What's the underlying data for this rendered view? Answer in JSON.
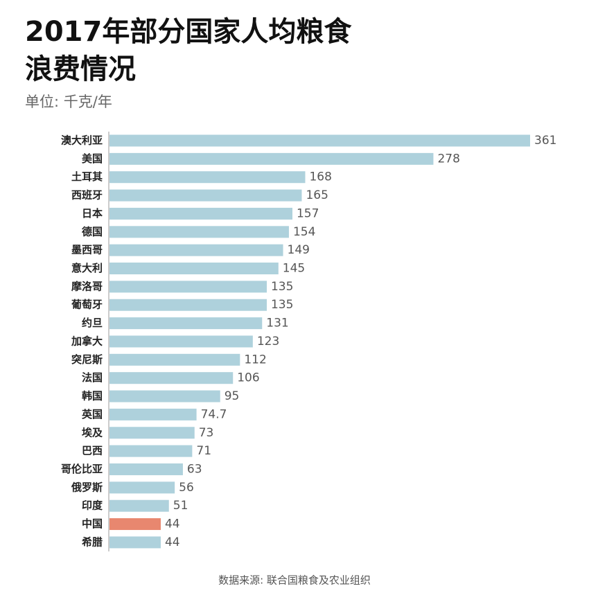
{
  "chart_data": {
    "type": "bar",
    "orientation": "horizontal",
    "title": [
      "2017年部分国家人均粮食",
      "浪费情况"
    ],
    "subtitle": "单位: 千克/年",
    "source": "数据来源: 联合国粮食及农业组织",
    "categories": [
      "澳大利亚",
      "美国",
      "土耳其",
      "西班牙",
      "日本",
      "德国",
      "墨西哥",
      "意大利",
      "摩洛哥",
      "葡萄牙",
      "约旦",
      "加拿大",
      "突尼斯",
      "法国",
      "韩国",
      "英国",
      "埃及",
      "巴西",
      "哥伦比亚",
      "俄罗斯",
      "印度",
      "中国",
      "希腊"
    ],
    "values": [
      361,
      278,
      168,
      165,
      157,
      154,
      149,
      145,
      135,
      135,
      131,
      123,
      112,
      106,
      95,
      74.7,
      73,
      71,
      63,
      56,
      51,
      44,
      44
    ],
    "colors": [
      "#aed1dc",
      "#aed1dc",
      "#aed1dc",
      "#aed1dc",
      "#aed1dc",
      "#aed1dc",
      "#aed1dc",
      "#aed1dc",
      "#aed1dc",
      "#aed1dc",
      "#aed1dc",
      "#aed1dc",
      "#aed1dc",
      "#aed1dc",
      "#aed1dc",
      "#aed1dc",
      "#aed1dc",
      "#aed1dc",
      "#aed1dc",
      "#aed1dc",
      "#aed1dc",
      "#e8876f",
      "#aed1dc"
    ]
  }
}
